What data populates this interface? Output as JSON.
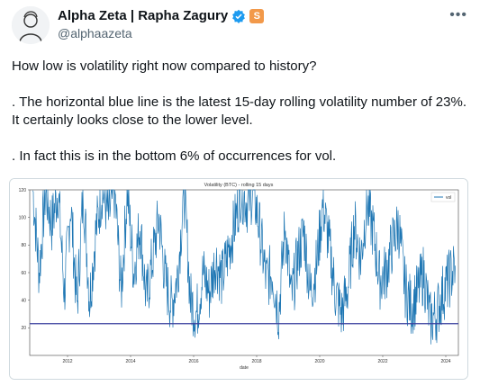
{
  "author": {
    "display_name": "Alpha Zeta | Rapha Zagury",
    "handle": "@alphaazeta",
    "badge_letter": "S"
  },
  "menu": {
    "more_label": "•••"
  },
  "tweet": {
    "paragraphs": [
      "How low is volatility right now compared to history?",
      ". The horizontal blue line is the latest 15-day rolling volatility number of 23%. It certainly looks close to the lower level.",
      ". In fact this is in the bottom 6% of occurrences for vol."
    ]
  },
  "colors": {
    "line": "#1f77b4",
    "hline": "#3a3f9e",
    "verified": "#1d9bf0",
    "badge": "#f2994a"
  },
  "chart_data": {
    "type": "line",
    "title": "Volatility (BTC) - rolling 15 days",
    "xlabel": "date",
    "ylabel": "",
    "legend": [
      "vol"
    ],
    "legend_position": "top-right",
    "ylim": [
      0,
      120
    ],
    "yticks": [
      20,
      40,
      60,
      80,
      100,
      120
    ],
    "xlim": [
      2010.8,
      2024.4
    ],
    "xticks": [
      2012,
      2014,
      2016,
      2018,
      2020,
      2022,
      2024
    ],
    "hline": 23,
    "series": [
      {
        "name": "vol",
        "x": [
          2010.9,
          2011.1,
          2011.3,
          2011.5,
          2011.7,
          2011.9,
          2012.1,
          2012.3,
          2012.5,
          2012.7,
          2012.9,
          2013.1,
          2013.3,
          2013.5,
          2013.7,
          2013.9,
          2014.1,
          2014.3,
          2014.5,
          2014.7,
          2014.9,
          2015.1,
          2015.3,
          2015.5,
          2015.7,
          2015.9,
          2016.1,
          2016.3,
          2016.5,
          2016.7,
          2016.9,
          2017.1,
          2017.3,
          2017.5,
          2017.7,
          2017.9,
          2018.1,
          2018.3,
          2018.5,
          2018.7,
          2018.9,
          2019.1,
          2019.3,
          2019.5,
          2019.7,
          2019.9,
          2020.1,
          2020.3,
          2020.5,
          2020.7,
          2020.9,
          2021.1,
          2021.3,
          2021.5,
          2021.7,
          2021.9,
          2022.1,
          2022.3,
          2022.5,
          2022.7,
          2022.9,
          2023.1,
          2023.3,
          2023.5,
          2023.7,
          2023.9,
          2024.1,
          2024.3
        ],
        "y": [
          120,
          60,
          120,
          95,
          120,
          45,
          110,
          35,
          120,
          40,
          90,
          120,
          100,
          120,
          45,
          120,
          60,
          95,
          40,
          70,
          100,
          55,
          35,
          60,
          120,
          40,
          30,
          60,
          45,
          70,
          55,
          75,
          95,
          120,
          110,
          120,
          90,
          55,
          60,
          30,
          95,
          40,
          70,
          90,
          45,
          65,
          110,
          80,
          45,
          30,
          50,
          95,
          70,
          110,
          90,
          55,
          60,
          80,
          95,
          50,
          35,
          45,
          60,
          25,
          30,
          45,
          55,
          65
        ]
      }
    ]
  }
}
